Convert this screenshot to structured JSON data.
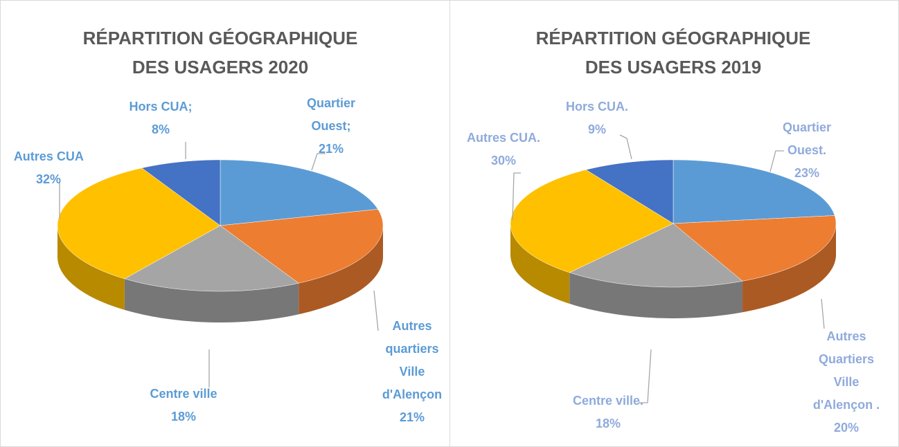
{
  "chart_data": [
    {
      "type": "pie",
      "title": "RÉPARTITION GÉOGRAPHIQUE DES USAGERS 2020",
      "categories": [
        "Quartier Ouest;",
        "Autres quartiers Ville d'Alençon",
        "Centre ville",
        "Autres CUA",
        "Hors CUA;"
      ],
      "values": [
        21,
        21,
        18,
        32,
        8
      ],
      "value_labels": [
        "21%",
        "21%",
        "18%",
        "32%",
        "8%"
      ],
      "colors": [
        "#5b9bd5",
        "#ed7d31",
        "#a5a5a5",
        "#ffc000",
        "#4472c4"
      ],
      "label_color": "#5b9bd5"
    },
    {
      "type": "pie",
      "title": "RÉPARTITION GÉOGRAPHIQUE DES USAGERS 2019",
      "categories": [
        "Quartier Ouest.",
        "Autres Quartiers Ville d'Alençon",
        "Centre ville.",
        "Autres CUA.",
        "Hors CUA."
      ],
      "values": [
        23,
        20,
        18,
        30,
        9
      ],
      "value_labels": [
        "23%",
        ". 20%",
        "18%",
        "30%",
        "9%"
      ],
      "colors": [
        "#5b9bd5",
        "#ed7d31",
        "#a5a5a5",
        "#ffc000",
        "#4472c4"
      ],
      "label_color": "#8faadc"
    }
  ]
}
